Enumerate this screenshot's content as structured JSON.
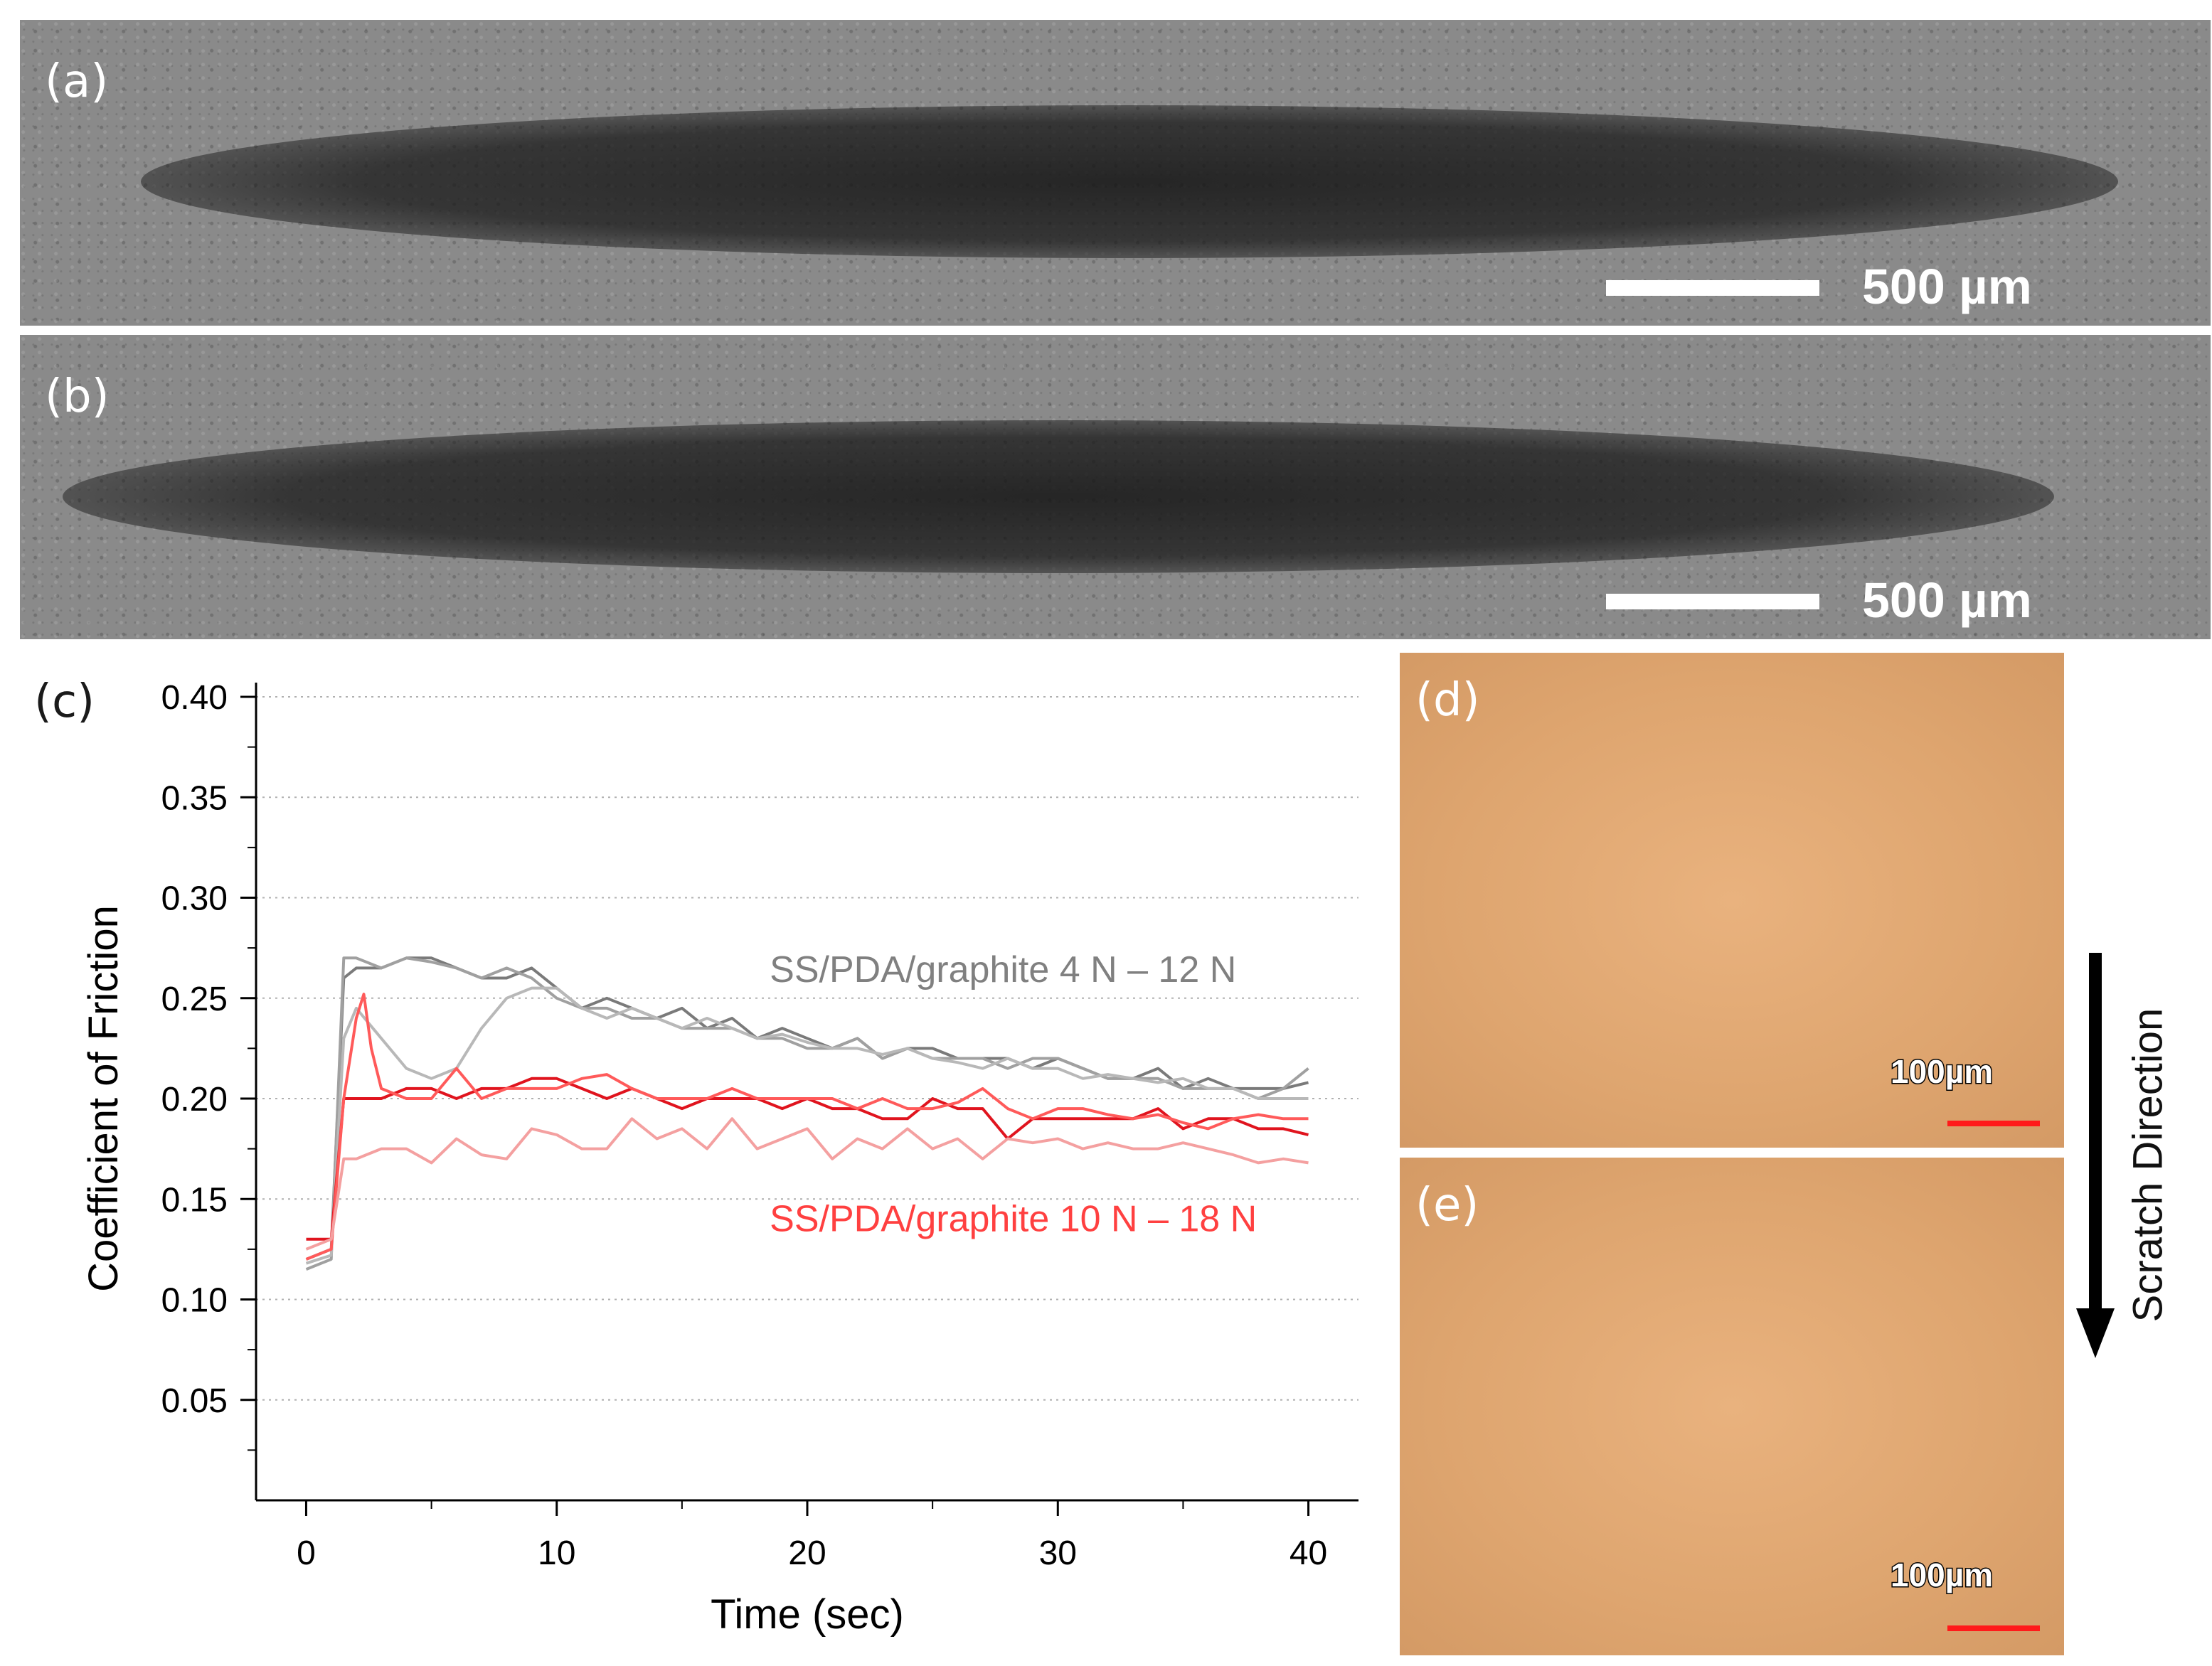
{
  "panels": {
    "a": {
      "label": "(a)",
      "scale_text": "500 µm"
    },
    "b": {
      "label": "(b)",
      "scale_text": "500 µm"
    },
    "c": {
      "label": "(c)"
    },
    "d": {
      "label": "(d)",
      "scale_text": "100µm"
    },
    "e": {
      "label": "(e)",
      "scale_text": "100µm"
    }
  },
  "scratch_direction": "Scratch Direction",
  "chart_data": {
    "type": "line",
    "xlabel": "Time (sec)",
    "ylabel": "Coefficient of Friction",
    "xlim": [
      -2,
      42
    ],
    "ylim": [
      0.0,
      0.4
    ],
    "xticks": [
      "0",
      "10",
      "20",
      "30",
      "40"
    ],
    "yticks": [
      "0.05",
      "0.10",
      "0.15",
      "0.20",
      "0.25",
      "0.30",
      "0.35",
      "0.40"
    ],
    "grid": "horizontal dotted",
    "annotations": [
      {
        "text": "SS/PDA/graphite 4 N – 12 N",
        "color": "#808080"
      },
      {
        "text": "SS/PDA/graphite 10 N – 18 N",
        "color": "#ff4040"
      }
    ],
    "series": [
      {
        "color": "#7a7a7a",
        "x": [
          0,
          1,
          1.5,
          2,
          3,
          4,
          5,
          6,
          7,
          8,
          9,
          10,
          11,
          12,
          13,
          14,
          15,
          16,
          17,
          18,
          19,
          20,
          21,
          22,
          23,
          24,
          25,
          26,
          27,
          28,
          29,
          30,
          31,
          32,
          33,
          34,
          35,
          36,
          37,
          38,
          39,
          40
        ],
        "y": [
          0.12,
          0.125,
          0.26,
          0.265,
          0.265,
          0.27,
          0.27,
          0.265,
          0.26,
          0.26,
          0.265,
          0.255,
          0.245,
          0.25,
          0.245,
          0.24,
          0.245,
          0.235,
          0.24,
          0.23,
          0.235,
          0.23,
          0.225,
          0.23,
          0.22,
          0.225,
          0.225,
          0.22,
          0.22,
          0.22,
          0.215,
          0.22,
          0.215,
          0.21,
          0.21,
          0.215,
          0.205,
          0.21,
          0.205,
          0.205,
          0.205,
          0.208
        ]
      },
      {
        "color": "#a0a0a0",
        "x": [
          0,
          1,
          1.5,
          2,
          3,
          4,
          5,
          6,
          7,
          8,
          9,
          10,
          11,
          12,
          13,
          14,
          15,
          16,
          17,
          18,
          19,
          20,
          21,
          22,
          23,
          24,
          25,
          26,
          27,
          28,
          29,
          30,
          31,
          32,
          33,
          34,
          35,
          36,
          37,
          38,
          39,
          40
        ],
        "y": [
          0.115,
          0.12,
          0.27,
          0.27,
          0.265,
          0.27,
          0.268,
          0.265,
          0.26,
          0.265,
          0.26,
          0.25,
          0.245,
          0.245,
          0.24,
          0.24,
          0.235,
          0.235,
          0.235,
          0.23,
          0.23,
          0.225,
          0.225,
          0.23,
          0.22,
          0.225,
          0.22,
          0.22,
          0.22,
          0.215,
          0.22,
          0.22,
          0.215,
          0.21,
          0.21,
          0.21,
          0.205,
          0.205,
          0.205,
          0.2,
          0.205,
          0.215
        ]
      },
      {
        "color": "#b8b8b8",
        "x": [
          0,
          1,
          1.5,
          2,
          3,
          4,
          5,
          6,
          7,
          8,
          9,
          10,
          11,
          12,
          13,
          14,
          15,
          16,
          17,
          18,
          19,
          20,
          21,
          22,
          23,
          24,
          25,
          26,
          27,
          28,
          29,
          30,
          31,
          32,
          33,
          34,
          35,
          36,
          37,
          38,
          39,
          40
        ],
        "y": [
          0.118,
          0.122,
          0.23,
          0.245,
          0.23,
          0.215,
          0.21,
          0.215,
          0.235,
          0.25,
          0.255,
          0.255,
          0.245,
          0.24,
          0.245,
          0.24,
          0.235,
          0.24,
          0.235,
          0.23,
          0.232,
          0.228,
          0.225,
          0.225,
          0.222,
          0.225,
          0.22,
          0.218,
          0.215,
          0.22,
          0.215,
          0.215,
          0.21,
          0.212,
          0.21,
          0.208,
          0.21,
          0.205,
          0.205,
          0.2,
          0.2,
          0.2
        ]
      },
      {
        "color": "#e0141e",
        "x": [
          0,
          1,
          1.5,
          2,
          3,
          4,
          5,
          6,
          7,
          8,
          9,
          10,
          11,
          12,
          13,
          14,
          15,
          16,
          17,
          18,
          19,
          20,
          21,
          22,
          23,
          24,
          25,
          26,
          27,
          28,
          29,
          30,
          31,
          32,
          33,
          34,
          35,
          36,
          37,
          38,
          39,
          40
        ],
        "y": [
          0.13,
          0.13,
          0.2,
          0.2,
          0.2,
          0.205,
          0.205,
          0.2,
          0.205,
          0.205,
          0.21,
          0.21,
          0.205,
          0.2,
          0.205,
          0.2,
          0.195,
          0.2,
          0.2,
          0.2,
          0.195,
          0.2,
          0.195,
          0.195,
          0.19,
          0.19,
          0.2,
          0.195,
          0.195,
          0.18,
          0.19,
          0.19,
          0.19,
          0.19,
          0.19,
          0.195,
          0.185,
          0.19,
          0.19,
          0.185,
          0.185,
          0.182
        ]
      },
      {
        "color": "#ff5a5a",
        "x": [
          0,
          1,
          1.5,
          2,
          2.3,
          2.6,
          3,
          4,
          5,
          6,
          7,
          8,
          9,
          10,
          11,
          12,
          13,
          14,
          15,
          16,
          17,
          18,
          19,
          20,
          21,
          22,
          23,
          24,
          25,
          26,
          27,
          28,
          29,
          30,
          31,
          32,
          33,
          34,
          35,
          36,
          37,
          38,
          39,
          40
        ],
        "y": [
          0.12,
          0.125,
          0.2,
          0.24,
          0.252,
          0.225,
          0.205,
          0.2,
          0.2,
          0.215,
          0.2,
          0.205,
          0.205,
          0.205,
          0.21,
          0.212,
          0.205,
          0.2,
          0.2,
          0.2,
          0.205,
          0.2,
          0.2,
          0.2,
          0.2,
          0.195,
          0.2,
          0.195,
          0.195,
          0.198,
          0.205,
          0.195,
          0.19,
          0.195,
          0.195,
          0.192,
          0.19,
          0.192,
          0.188,
          0.185,
          0.19,
          0.192,
          0.19,
          0.19
        ]
      },
      {
        "color": "#f4a0a0",
        "x": [
          0,
          1,
          1.5,
          2,
          3,
          4,
          5,
          6,
          7,
          8,
          9,
          10,
          11,
          12,
          13,
          14,
          15,
          16,
          17,
          18,
          19,
          20,
          21,
          22,
          23,
          24,
          25,
          26,
          27,
          28,
          29,
          30,
          31,
          32,
          33,
          34,
          35,
          36,
          37,
          38,
          39,
          40
        ],
        "y": [
          0.125,
          0.13,
          0.17,
          0.17,
          0.175,
          0.175,
          0.168,
          0.18,
          0.172,
          0.17,
          0.185,
          0.182,
          0.175,
          0.175,
          0.19,
          0.18,
          0.185,
          0.175,
          0.19,
          0.175,
          0.18,
          0.185,
          0.17,
          0.18,
          0.175,
          0.185,
          0.175,
          0.18,
          0.17,
          0.18,
          0.178,
          0.18,
          0.175,
          0.178,
          0.175,
          0.175,
          0.178,
          0.175,
          0.172,
          0.168,
          0.17,
          0.168
        ]
      }
    ]
  }
}
